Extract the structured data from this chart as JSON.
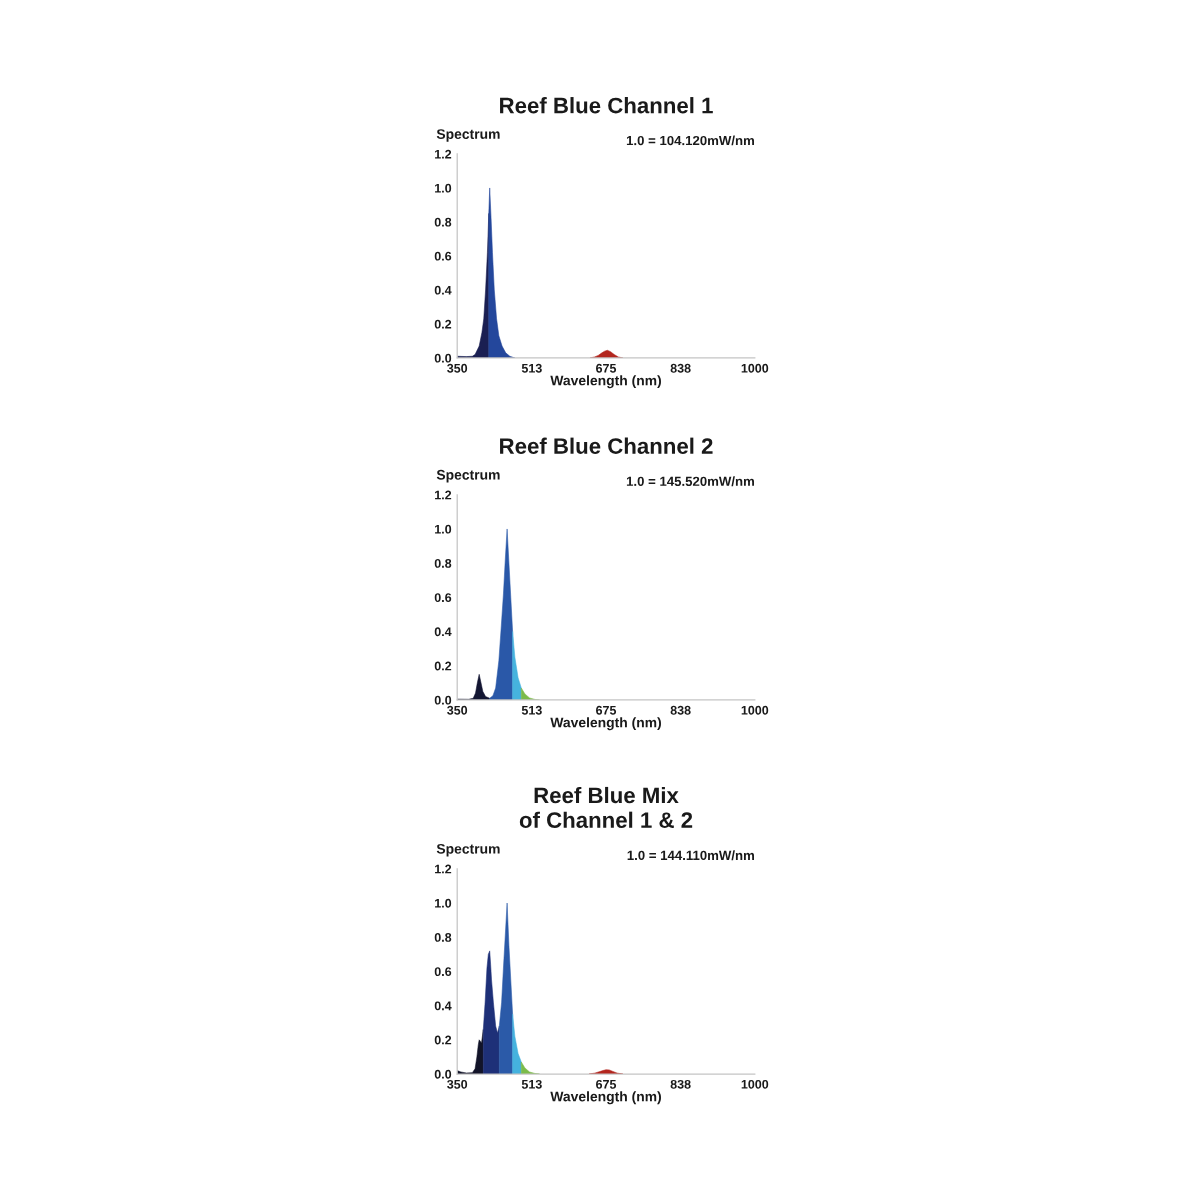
{
  "chart_data": [
    {
      "type": "area",
      "title": "Reef Blue Channel 1",
      "ylabel": "Spectrum",
      "xlabel": "Wavelength (nm)",
      "annotations": [
        "1.0 = 104.120mW/nm"
      ],
      "xlim": [
        350,
        1000
      ],
      "ylim": [
        0,
        1.2
      ],
      "xticks": [
        350,
        513,
        675,
        838,
        1000
      ],
      "yticks": [
        {
          "value": 0,
          "label": "0.0"
        },
        {
          "value": 0.2,
          "label": "0.2"
        },
        {
          "value": 0.4,
          "label": "0.4"
        },
        {
          "value": 0.6,
          "label": "0.6"
        },
        {
          "value": 0.8,
          "label": "0.8"
        },
        {
          "value": 1,
          "label": "1.0"
        },
        {
          "value": 1.2,
          "label": "1.2"
        }
      ],
      "series": [
        {
          "color": "#1a1f52",
          "x": [
            350,
            370,
            383,
            389,
            398,
            404,
            408,
            412,
            416,
            419
          ],
          "values": [
            0.01,
            0.008,
            0.01,
            0.02,
            0.07,
            0.15,
            0.23,
            0.4,
            0.62,
            0.85
          ]
        },
        {
          "color": "#24479c",
          "x": [
            419,
            421,
            424,
            427,
            431,
            436,
            441,
            448,
            456,
            465,
            476
          ],
          "values": [
            0.85,
            1.0,
            0.82,
            0.62,
            0.4,
            0.23,
            0.13,
            0.07,
            0.03,
            0.01,
            0.0
          ]
        },
        {
          "color": "#b3261e",
          "x": [
            640,
            650,
            658,
            666,
            672,
            678,
            685,
            693,
            702,
            712
          ],
          "values": [
            0.0,
            0.006,
            0.015,
            0.03,
            0.04,
            0.045,
            0.037,
            0.02,
            0.006,
            0.0
          ]
        }
      ]
    },
    {
      "type": "area",
      "title": "Reef Blue Channel 2",
      "ylabel": "Spectrum",
      "xlabel": "Wavelength (nm)",
      "annotations": [
        "1.0 = 145.520mW/nm"
      ],
      "xlim": [
        350,
        1000
      ],
      "ylim": [
        0,
        1.2
      ],
      "xticks": [
        350,
        513,
        675,
        838,
        1000
      ],
      "yticks": [
        {
          "value": 0,
          "label": "0.0"
        },
        {
          "value": 0.2,
          "label": "0.2"
        },
        {
          "value": 0.4,
          "label": "0.4"
        },
        {
          "value": 0.6,
          "label": "0.6"
        },
        {
          "value": 0.8,
          "label": "0.8"
        },
        {
          "value": 1,
          "label": "1.0"
        },
        {
          "value": 1.2,
          "label": "1.2"
        }
      ],
      "series": [
        {
          "color": "#131632",
          "x": [
            350,
            375,
            385,
            390,
            394,
            398,
            402,
            406,
            412,
            421
          ],
          "values": [
            0.005,
            0.004,
            0.01,
            0.04,
            0.1,
            0.15,
            0.1,
            0.05,
            0.02,
            0.01
          ]
        },
        {
          "color": "#2a58a8",
          "x": [
            421,
            428,
            434,
            441,
            446,
            451,
            455,
            459,
            463,
            467,
            471
          ],
          "values": [
            0.01,
            0.025,
            0.07,
            0.23,
            0.42,
            0.62,
            0.82,
            1.0,
            0.8,
            0.6,
            0.4
          ]
        },
        {
          "color": "#46b3de",
          "x": [
            471,
            476,
            483,
            490
          ],
          "values": [
            0.4,
            0.25,
            0.13,
            0.07
          ]
        },
        {
          "color": "#7cbb4a",
          "x": [
            490,
            498,
            508,
            520,
            530
          ],
          "values": [
            0.07,
            0.035,
            0.012,
            0.003,
            0.0
          ]
        }
      ]
    },
    {
      "type": "area",
      "title": "Reef Blue Mix of Channel 1 & 2",
      "ylabel": "Spectrum",
      "xlabel": "Wavelength (nm)",
      "annotations": [
        "1.0 = 144.110mW/nm"
      ],
      "xlim": [
        350,
        1000
      ],
      "ylim": [
        0,
        1.2
      ],
      "xticks": [
        350,
        513,
        675,
        838,
        1000
      ],
      "yticks": [
        {
          "value": 0,
          "label": "0.0"
        },
        {
          "value": 0.2,
          "label": "0.2"
        },
        {
          "value": 0.4,
          "label": "0.4"
        },
        {
          "value": 0.6,
          "label": "0.6"
        },
        {
          "value": 0.8,
          "label": "0.8"
        },
        {
          "value": 1,
          "label": "1.0"
        },
        {
          "value": 1.2,
          "label": "1.2"
        }
      ],
      "series": [
        {
          "color": "#121429",
          "x": [
            350,
            358,
            370,
            383,
            389,
            393,
            396,
            398,
            401,
            403,
            407
          ],
          "values": [
            0.02,
            0.012,
            0.006,
            0.008,
            0.03,
            0.1,
            0.17,
            0.2,
            0.19,
            0.18,
            0.26
          ]
        },
        {
          "color": "#1e3078",
          "x": [
            407,
            411,
            415,
            418,
            421,
            423,
            425,
            429,
            434,
            438,
            442
          ],
          "values": [
            0.26,
            0.42,
            0.62,
            0.7,
            0.72,
            0.64,
            0.55,
            0.42,
            0.28,
            0.24,
            0.28
          ]
        },
        {
          "color": "#2b5aa8",
          "x": [
            442,
            447,
            451,
            455,
            459,
            463,
            467,
            471
          ],
          "values": [
            0.28,
            0.42,
            0.62,
            0.81,
            1.0,
            0.75,
            0.55,
            0.35
          ]
        },
        {
          "color": "#45b2de",
          "x": [
            471,
            476,
            483,
            490
          ],
          "values": [
            0.35,
            0.22,
            0.12,
            0.07
          ]
        },
        {
          "color": "#7cbb4a",
          "x": [
            490,
            498,
            508,
            520,
            530
          ],
          "values": [
            0.07,
            0.035,
            0.012,
            0.003,
            0.0
          ]
        },
        {
          "color": "#b3261e",
          "x": [
            638,
            650,
            660,
            668,
            675,
            682,
            690,
            700,
            712
          ],
          "values": [
            0.0,
            0.005,
            0.013,
            0.02,
            0.025,
            0.024,
            0.015,
            0.005,
            0.0
          ]
        }
      ]
    }
  ]
}
